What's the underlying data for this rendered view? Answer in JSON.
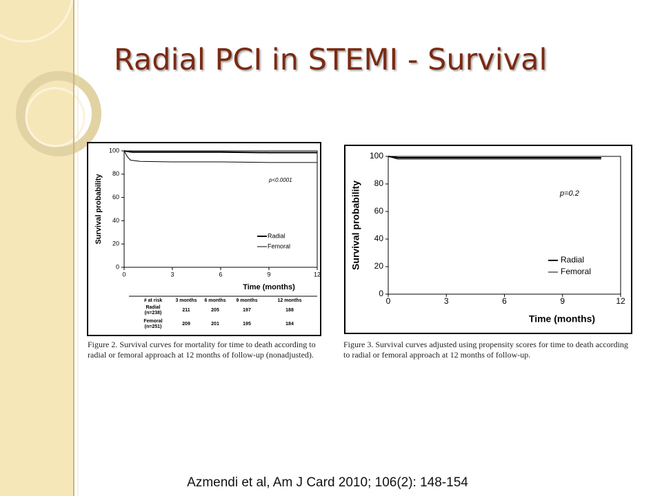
{
  "title": "Radial PCI in STEMI - Survival",
  "chart_data": [
    {
      "type": "line",
      "ylabel": "Survival probability",
      "xlabel": "Time (months)",
      "xlim": [
        0,
        12
      ],
      "xticks": [
        0,
        3,
        6,
        9,
        12
      ],
      "ylim": [
        0,
        100
      ],
      "yticks": [
        0,
        20,
        40,
        60,
        80,
        100
      ],
      "annotation": "p<0.0001",
      "series": [
        {
          "name": "Radial",
          "color": "#000000",
          "width": 2,
          "x": [
            0,
            0.2,
            0.5,
            1,
            3,
            6,
            9,
            12
          ],
          "values": [
            100,
            99.5,
            99,
            99,
            99,
            99,
            98.5,
            98.5
          ]
        },
        {
          "name": "Femoral",
          "color": "#000000",
          "width": 1,
          "x": [
            0,
            0.2,
            0.4,
            1,
            3,
            6,
            9,
            12
          ],
          "values": [
            100,
            95,
            92,
            91,
            90.5,
            90.5,
            90,
            90
          ]
        }
      ],
      "risk_table": {
        "header": [
          "# at risk",
          "3 months",
          "6 months",
          "9 months",
          "12 months"
        ],
        "rows": [
          {
            "label": [
              "Radial",
              "(n=238)"
            ],
            "values": [
              211,
              205,
              197,
              188
            ]
          },
          {
            "label": [
              "Femoral",
              "(n=251)"
            ],
            "values": [
              209,
              201,
              195,
              184
            ]
          }
        ]
      },
      "caption": "Figure 2. Survival curves for mortality for time to death according to radial or femoral approach at 12 months of follow-up (nonadjusted)."
    },
    {
      "type": "line",
      "ylabel": "Survival probability",
      "xlabel": "Time (months)",
      "xlim": [
        0,
        12
      ],
      "xticks": [
        0,
        3,
        6,
        9,
        12
      ],
      "ylim": [
        0,
        100
      ],
      "yticks": [
        0,
        20,
        40,
        60,
        80,
        100
      ],
      "annotation": "p=0.2",
      "series": [
        {
          "name": "Radial",
          "color": "#000000",
          "width": 2,
          "x": [
            0,
            0.5,
            11
          ],
          "values": [
            100,
            99,
            99
          ]
        },
        {
          "name": "Femoral",
          "color": "#000000",
          "width": 1,
          "x": [
            0,
            0.5,
            11
          ],
          "values": [
            100,
            98,
            98
          ]
        }
      ],
      "caption": "Figure 3. Survival curves adjusted using propensity scores for time to death according to radial or femoral approach at 12 months of follow-up."
    }
  ],
  "citation": "Azmendi et al, Am J Card 2010; 106(2): 148-154"
}
